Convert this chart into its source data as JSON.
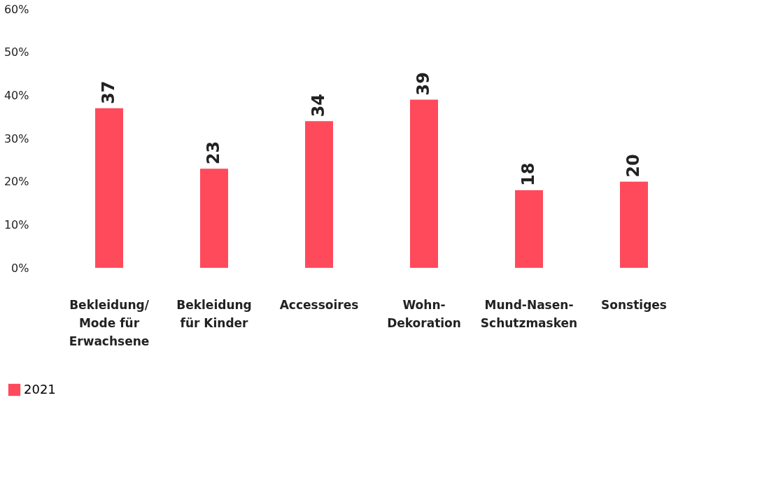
{
  "chart_data": {
    "type": "bar",
    "categories": [
      "Bekleidung/ Mode für Erwachsene",
      "Bekleidung für Kinder",
      "Accessoires",
      "Wohn-Dekoration",
      "Mund-Nasen-Schutzmasken",
      "Sonstiges"
    ],
    "series": [
      {
        "name": "2021",
        "color": "#ff4a5c",
        "values": [
          37,
          23,
          34,
          39,
          18,
          20
        ]
      }
    ],
    "ylim": [
      0,
      60
    ],
    "yticks": [
      {
        "value": 0,
        "label": "0%"
      },
      {
        "value": 10,
        "label": "10%"
      },
      {
        "value": 20,
        "label": "20%"
      },
      {
        "value": 30,
        "label": "30%"
      },
      {
        "value": 40,
        "label": "40%"
      },
      {
        "value": 50,
        "label": "50%"
      },
      {
        "value": 60,
        "label": "60%"
      }
    ],
    "data_labels": true,
    "grid": false,
    "legend": "bottom left"
  }
}
